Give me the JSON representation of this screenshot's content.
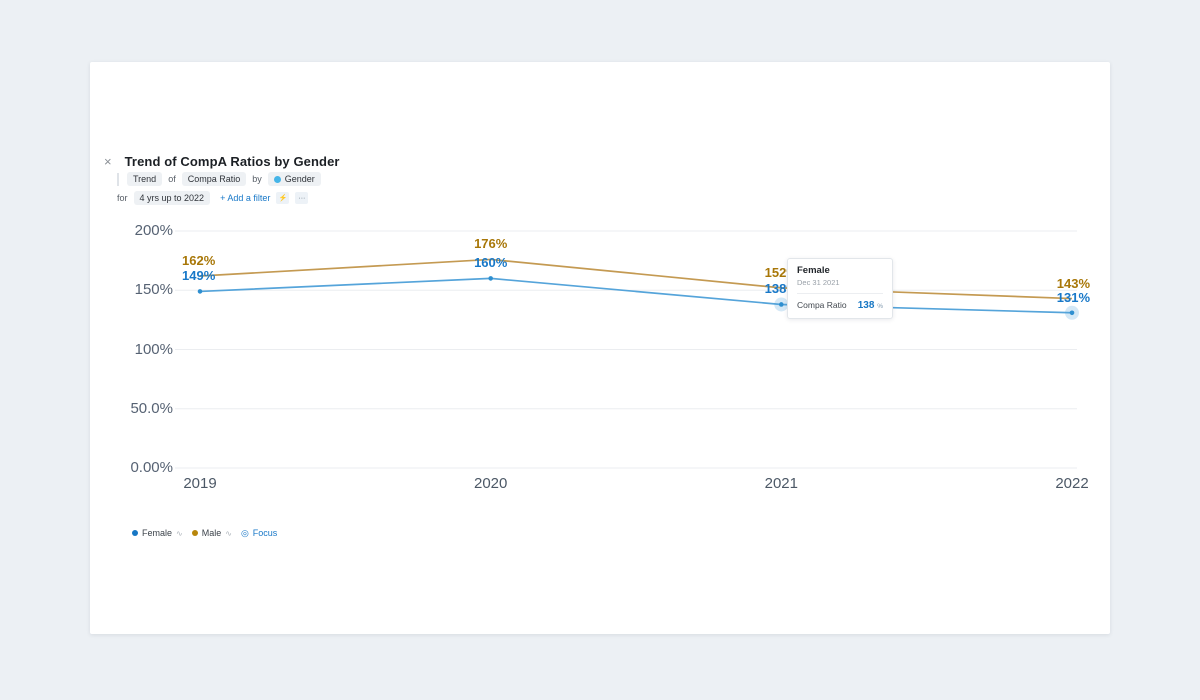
{
  "icons": {
    "close": "×",
    "bolt": "⚡",
    "more": "···",
    "sparkline": "∿",
    "focus": "◎"
  },
  "header": {
    "title": "Trend of CompA Ratios by Gender"
  },
  "query": {
    "trend": "Trend",
    "of_label": "of",
    "metric": "Compa Ratio",
    "by_label": "by",
    "dimension": "Gender",
    "for_label": "for",
    "timeframe": "4 yrs up to 2022",
    "add_filter": "+ Add a filter"
  },
  "chart_data": {
    "type": "line",
    "title": "Trend of CompA Ratios by Gender",
    "x": [
      "2019",
      "2020",
      "2021",
      "2022"
    ],
    "series": [
      {
        "name": "Male",
        "values": [
          162,
          176,
          152,
          143
        ],
        "labels": [
          "162%",
          "176%",
          "152%",
          "143%"
        ],
        "line_color": "#c49a52",
        "label_color": "#a87708",
        "marker": false,
        "halo_indices": []
      },
      {
        "name": "Female",
        "values": [
          149,
          160,
          138,
          131
        ],
        "labels": [
          "149%",
          "160%",
          "138%",
          "131%"
        ],
        "line_color": "#55a4da",
        "label_color": "#1878c8",
        "marker": true,
        "marker_color": "#2e8fd0",
        "halo_indices": [
          2,
          3
        ]
      }
    ],
    "y_ticks": [
      {
        "label": "200%",
        "value": 200
      },
      {
        "label": "150%",
        "value": 150
      },
      {
        "label": "100%",
        "value": 100
      },
      {
        "label": "50.0%",
        "value": 50
      },
      {
        "label": "0.00%",
        "value": 0
      }
    ],
    "ylim": [
      0,
      200
    ],
    "grid": true,
    "grid_color": "#ebedf0",
    "legend_position": "bottom-left"
  },
  "tooltip": {
    "series": "Female",
    "date": "Dec 31 2021",
    "metric": "Compa Ratio",
    "value": "138",
    "unit": "%"
  },
  "legend": {
    "items": [
      {
        "label": "Female",
        "color": "#1777c4"
      },
      {
        "label": "Male",
        "color": "#b8860b"
      }
    ],
    "focus_label": "Focus"
  }
}
